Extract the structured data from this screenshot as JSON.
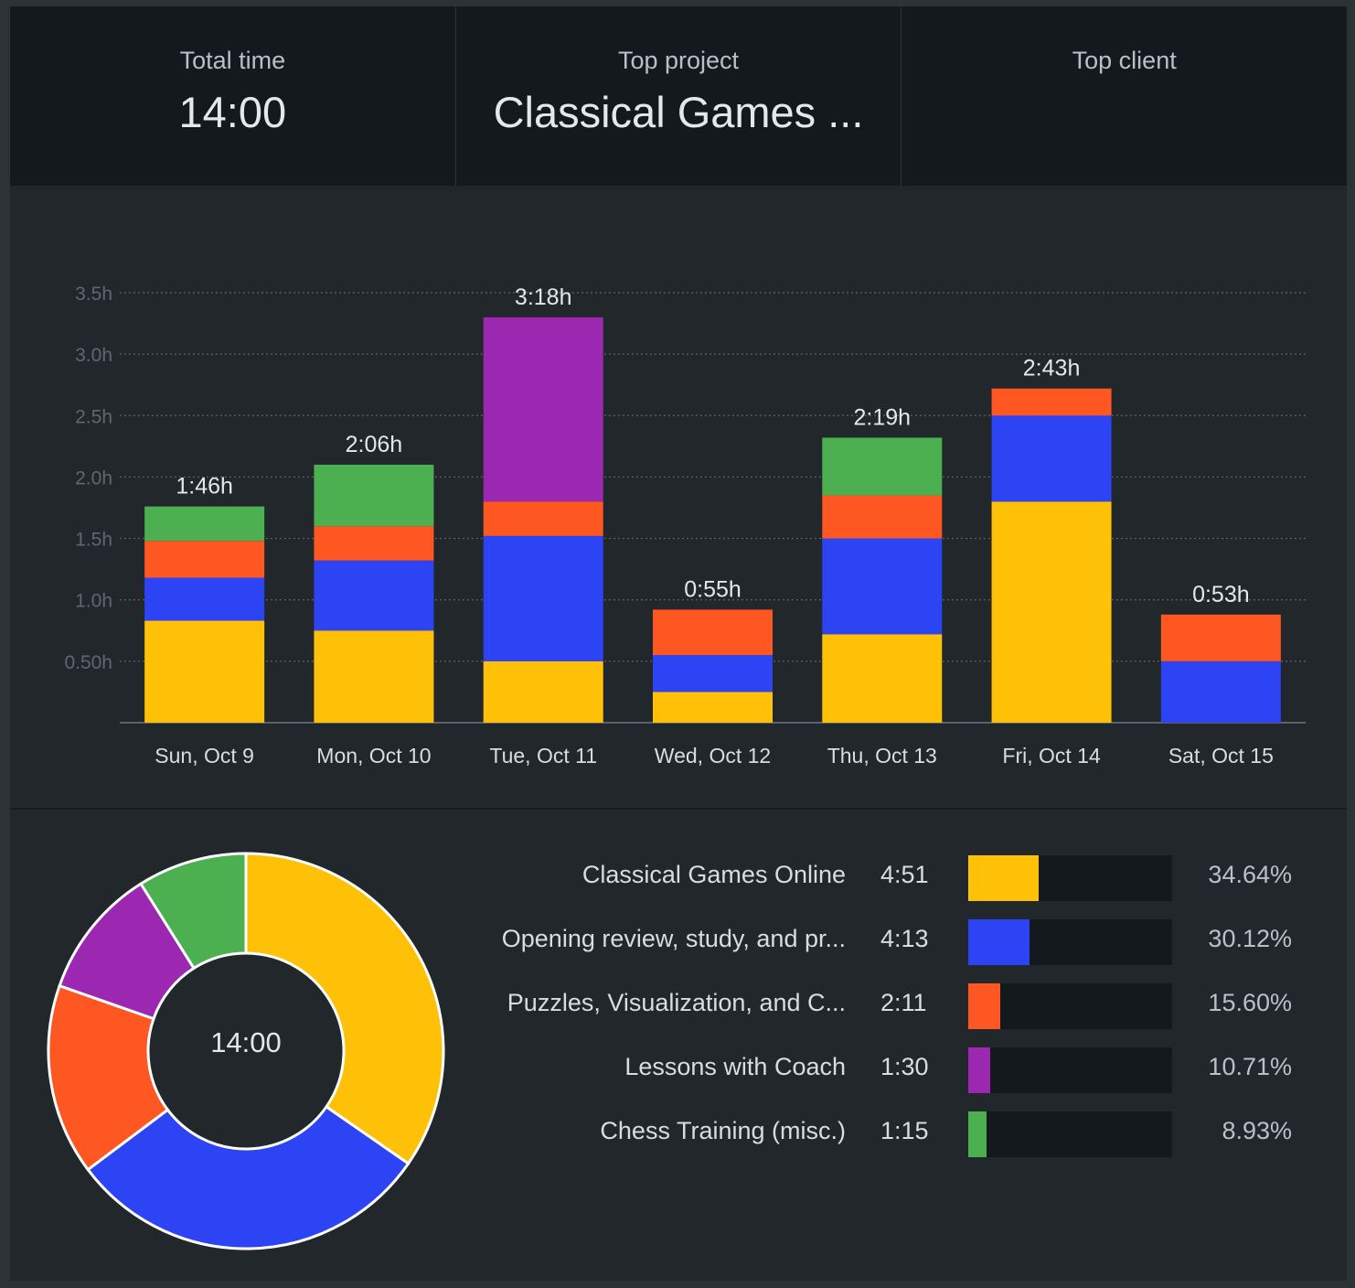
{
  "summary": {
    "total_time_label": "Total time",
    "total_time_value": "14:00",
    "top_project_label": "Top project",
    "top_project_value": "Classical Games ...",
    "top_client_label": "Top client",
    "top_client_value": ""
  },
  "colors": {
    "classical": "#ffc107",
    "opening": "#2d44f5",
    "puzzles": "#ff5722",
    "lessons": "#9c27b0",
    "chess_training": "#4caf50"
  },
  "chart_data": [
    {
      "type": "bar",
      "stacked": true,
      "categories": [
        "Sun, Oct 9",
        "Mon, Oct 10",
        "Tue, Oct 11",
        "Wed, Oct 12",
        "Thu, Oct 13",
        "Fri, Oct 14",
        "Sat, Oct 15"
      ],
      "totals_labels": [
        "1:46h",
        "2:06h",
        "3:18h",
        "0:55h",
        "2:19h",
        "2:43h",
        "0:53h"
      ],
      "series": [
        {
          "color": "#ffc107",
          "values": [
            0.83,
            0.75,
            0.5,
            0.25,
            0.72,
            1.8,
            0
          ]
        },
        {
          "color": "#2d44f5",
          "values": [
            0.35,
            0.57,
            1.02,
            0.3,
            0.78,
            0.7,
            0.5
          ]
        },
        {
          "color": "#ff5722",
          "values": [
            0.3,
            0.28,
            0.28,
            0.37,
            0.35,
            0.22,
            0.38
          ]
        },
        {
          "color": "#9c27b0",
          "values": [
            0,
            0,
            1.5,
            0,
            0,
            0,
            0
          ]
        },
        {
          "color": "#4caf50",
          "values": [
            0.28,
            0.5,
            0,
            0,
            0.47,
            0,
            0
          ]
        }
      ],
      "y_ticks": [
        {
          "value": 0.5,
          "label": "0.50h"
        },
        {
          "value": 1.0,
          "label": "1.0h"
        },
        {
          "value": 1.5,
          "label": "1.5h"
        },
        {
          "value": 2.0,
          "label": "2.0h"
        },
        {
          "value": 2.5,
          "label": "2.5h"
        },
        {
          "value": 3.0,
          "label": "3.0h"
        },
        {
          "value": 3.5,
          "label": "3.5h"
        }
      ],
      "ylim": [
        0,
        3.5
      ],
      "grid": true
    },
    {
      "type": "pie",
      "donut": true,
      "center_label": "14:00",
      "slices": [
        {
          "name": "Classical Games Online",
          "time": "4:51",
          "percent": 34.64,
          "percent_label": "34.64%",
          "color": "#ffc107"
        },
        {
          "name": "Opening review, study, and pr...",
          "time": "4:13",
          "percent": 30.12,
          "percent_label": "30.12%",
          "color": "#2d44f5"
        },
        {
          "name": "Puzzles, Visualization, and C...",
          "time": "2:11",
          "percent": 15.6,
          "percent_label": "15.60%",
          "color": "#ff5722"
        },
        {
          "name": "Lessons with Coach",
          "time": "1:30",
          "percent": 10.71,
          "percent_label": "10.71%",
          "color": "#9c27b0"
        },
        {
          "name": "Chess Training (misc.)",
          "time": "1:15",
          "percent": 8.93,
          "percent_label": "8.93%",
          "color": "#4caf50"
        }
      ]
    }
  ]
}
